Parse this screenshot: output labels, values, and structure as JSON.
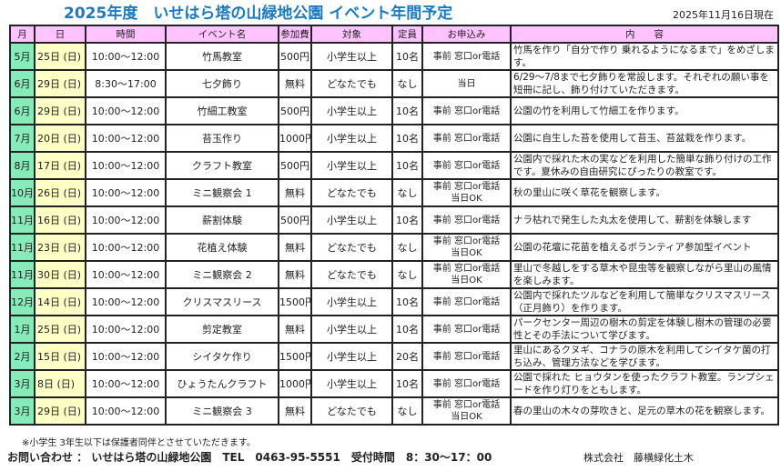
{
  "title": "2025年度　いせはら塔の山緑地公園 イベント年間予定",
  "as_of": "2025年11月16日現在",
  "headers": [
    "月",
    "日",
    "時間",
    "イベント名",
    "参加費",
    "対象",
    "定員",
    "お申込み",
    "内　　容"
  ],
  "rows": [
    [
      "5月",
      "25日 (日)",
      "10:00～12:00",
      "竹馬教室",
      "500円",
      "小学生以上",
      "10名",
      "事前 窓口or電話",
      "竹馬を作り「自分で作り 乗れるようになるまで」をめざします。"
    ],
    [
      "6月",
      "29日 (日)",
      "8:30～17:00",
      "七夕飾り",
      "無料",
      "どなたでも",
      "なし",
      "当日",
      "6/29～7/8まで七夕飾りを常設します。それぞれの願い事を短冊に記し、飾り付けていただきます。"
    ],
    [
      "6月",
      "29日 (日)",
      "10:00～12:00",
      "竹細工教室",
      "500円",
      "小学生以上",
      "10名",
      "事前 窓口or電話",
      "公園の竹を利用して竹細工を作ります。"
    ],
    [
      "7月",
      "20日 (日)",
      "10:00～12:00",
      "苔玉作り",
      "1000円",
      "小学生以上",
      "10名",
      "事前 窓口or電話",
      "公園に自生した苔を使用して苔玉、苔盆栽を作ります。"
    ],
    [
      "8月",
      "17日 (日)",
      "10:00～12:00",
      "クラフト教室",
      "500円",
      "小学生以上",
      "10名",
      "事前 窓口or電話",
      "公園内で採れた木の実などを利用した簡単な飾り付けの工作です。夏休みの自由研究にぴったりの教室です。"
    ],
    [
      "10月",
      "26日 (日)",
      "10:00～12:00",
      "ミニ観察会 1",
      "無料",
      "どなたでも",
      "なし",
      "事前 窓口or電話 当日OK",
      "秋の里山に咲く草花を観察します。"
    ],
    [
      "11月",
      "16日 (日)",
      "10:00～12:00",
      "薪割体験",
      "500円",
      "小学生以上",
      "10名",
      "事前 窓口or電話",
      "ナラ枯れで発生した丸太を使用して、薪割を体験します"
    ],
    [
      "11月",
      "23日 (日)",
      "10:00～12:00",
      "花植え体験",
      "無料",
      "どなたでも",
      "なし",
      "事前 窓口or電話 当日OK",
      "公園の花壇に花苗を植えるボランティア参加型イベント"
    ],
    [
      "11月",
      "30日 (日)",
      "10:00～12:00",
      "ミニ観察会 2",
      "無料",
      "どなたでも",
      "なし",
      "事前 窓口or電話 当日OK",
      "里山で冬越しをする草木や昆虫等を観察しながら里山の風情を楽しみます。"
    ],
    [
      "12月",
      "14日 (日)",
      "10:00～12:00",
      "クリスマスリース",
      "1500円",
      "小学生以上",
      "10名",
      "事前 窓口or電話",
      "公園内で採れたツルなどを利用して簡単なクリスマスリース（正月飾り）を作ります。"
    ],
    [
      "1月",
      "25日 (日)",
      "10:00～12:00",
      "剪定教室",
      "無料",
      "小学生以上",
      "10名",
      "事前 窓口or電話",
      "パークセンター周辺の樹木の剪定を体験し樹木の管理の必要性とその手法について学びます。"
    ],
    [
      "2月",
      "15日 (日)",
      "10:00～12:00",
      "シイタケ作り",
      "1500円",
      "小学生以上",
      "20名",
      "事前 窓口or電話",
      "里山にあるクヌギ、コナラの原木を利用してシイタケ菌の打ち込み、管理方法などを学びます。"
    ],
    [
      "3月",
      "8日 (日)",
      "10:00～12:00",
      "ひょうたんクラフト",
      "1000円",
      "小学生以上",
      "10名",
      "事前 窓口or電話",
      "公園で採れた ヒョウタンを使ったクラフト教室。ランプシェードを作り灯りをともします。"
    ],
    [
      "3月",
      "29日 (日)",
      "10:00～12:00",
      "ミニ観察会 3",
      "無料",
      "どなたでも",
      "なし",
      "事前 窓口or電話 当日OK",
      "春の里山の木々の芽吹きと、足元の草木の花を観察します。"
    ]
  ],
  "note": "※小学生 3年生以下は保護者同伴とさせていただきます。",
  "contact": "お問い合わせ ： いせはら塔の山緑地公園　TEL　0463-95-5551　受付時間　8：30～17：00",
  "company": "株式会社　藤横緑化土木",
  "colors": {
    "title": "#1a7bc4",
    "header": "#ffc4ff",
    "month": "#86eab9",
    "day": "#ffffc6"
  }
}
